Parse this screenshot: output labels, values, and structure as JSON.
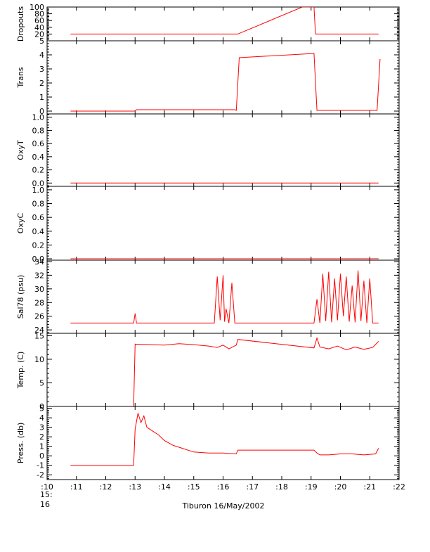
{
  "chart_data": {
    "type": "line",
    "line_color": "#ff0000",
    "axis_color": "#000000",
    "x_axis": {
      "range": [
        10,
        22
      ],
      "ticks": [
        10,
        11,
        12,
        13,
        14,
        15,
        16,
        17,
        18,
        19,
        20,
        21,
        22
      ],
      "tick_labels": [
        ":10",
        ":11",
        ":12",
        ":13",
        ":14",
        ":15",
        ":16",
        ":17",
        ":18",
        ":19",
        ":20",
        ":21",
        ":22"
      ],
      "start_label_line1": "15:",
      "start_label_line2": "16",
      "title": "Tiburon 16/May/2002"
    },
    "panels": [
      {
        "ylabel": "Dropouts",
        "ylim": [
          0,
          100
        ],
        "ticks": [
          20,
          40,
          60,
          80,
          100
        ],
        "tick_labels": [
          "20",
          "40",
          "60",
          "80",
          "100"
        ],
        "series": [
          {
            "x": [
              10.8,
              16.5,
              18.7,
              19.1,
              19.15,
              21.3
            ],
            "y": [
              20,
              20,
              100,
              100,
              20,
              20
            ]
          }
        ]
      },
      {
        "ylabel": "Trans",
        "ylim": [
          -0.2,
          5
        ],
        "ticks": [
          0,
          1,
          2,
          3,
          4,
          5
        ],
        "tick_labels": [
          "0",
          "1",
          "2",
          "3",
          "4",
          "5"
        ],
        "series": [
          {
            "x": [
              10.8,
              13.0,
              13.05,
              16.4,
              16.45,
              16.55,
              19.1,
              19.2,
              21.25,
              21.35
            ],
            "y": [
              0,
              0,
              0.1,
              0.1,
              0.05,
              3.8,
              4.1,
              0.05,
              0.05,
              3.7
            ]
          }
        ]
      },
      {
        "ylabel": "OxyT",
        "ylim": [
          -0.05,
          1.05
        ],
        "ticks": [
          0.0,
          0.2,
          0.4,
          0.6,
          0.8,
          1.0
        ],
        "tick_labels": [
          "0.0",
          "0.2",
          "0.4",
          "0.6",
          "0.8",
          "1.0"
        ],
        "series": [
          {
            "x": [
              10.8,
              21.3
            ],
            "y": [
              0,
              0
            ]
          }
        ]
      },
      {
        "ylabel": "OxyC",
        "ylim": [
          -0.02,
          1.05
        ],
        "ticks": [
          0.0,
          0.2,
          0.4,
          0.6,
          0.8,
          1.0
        ],
        "tick_labels": [
          "0.0",
          "0.2",
          "0.4",
          "0.6",
          "0.8",
          "1.0"
        ],
        "series": [
          {
            "x": [
              10.8,
              21.3
            ],
            "y": [
              0,
              0
            ]
          }
        ]
      },
      {
        "ylabel": "Sal78 (psu)",
        "ylim": [
          23.5,
          34.2
        ],
        "ticks": [
          24,
          26,
          28,
          30,
          32,
          34
        ],
        "tick_labels": [
          "24",
          "26",
          "28",
          "30",
          "32",
          "34"
        ],
        "series": [
          {
            "x": [
              10.8,
              12.95,
              13.0,
              13.05,
              15.7,
              15.8,
              15.9,
              16.0,
              16.05,
              16.1,
              16.2,
              16.3,
              16.4,
              19.1,
              19.2,
              19.3,
              19.4,
              19.5,
              19.6,
              19.7,
              19.8,
              19.9,
              20.0,
              20.1,
              20.2,
              20.3,
              20.4,
              20.5,
              20.6,
              20.7,
              20.8,
              20.9,
              21.0,
              21.1,
              21.2,
              21.3
            ],
            "y": [
              25,
              25,
              26.4,
              25,
              25,
              31.8,
              25.4,
              32.0,
              25.2,
              27.1,
              25.0,
              30.9,
              25.0,
              25.0,
              28.5,
              25.0,
              32.2,
              25.3,
              32.5,
              25.1,
              31.5,
              25.4,
              32.2,
              26.0,
              31.8,
              25.2,
              30.5,
              25.1,
              32.7,
              25.3,
              31.2,
              25.0,
              31.5,
              25.0,
              25.0,
              25.0
            ]
          }
        ]
      },
      {
        "ylabel": "Temp. (C)",
        "ylim": [
          0,
          15.5
        ],
        "ticks": [
          0,
          5,
          10,
          15
        ],
        "tick_labels": [
          "0",
          "5",
          "10",
          "15"
        ],
        "series": [
          {
            "x": [
              10.8,
              12.95,
              13.0,
              13.5,
              14.0,
              14.5,
              15.0,
              15.5,
              15.8,
              16.0,
              16.2,
              16.45,
              16.5,
              19.1,
              19.2,
              19.3,
              19.6,
              19.9,
              20.2,
              20.5,
              20.8,
              21.1,
              21.3
            ],
            "y": [
              0,
              0,
              13.2,
              13.1,
              13.0,
              13.3,
              13.1,
              12.8,
              12.5,
              13.0,
              12.2,
              13.0,
              14.2,
              12.4,
              14.5,
              12.6,
              12.2,
              12.8,
              12.0,
              12.6,
              12.1,
              12.5,
              13.8
            ]
          }
        ]
      },
      {
        "ylabel": "Press. (db)",
        "ylim": [
          -2.5,
          5.2
        ],
        "ticks": [
          -2,
          -1,
          0,
          1,
          2,
          3,
          4,
          5
        ],
        "tick_labels": [
          "-2",
          "-1",
          "0",
          "1",
          "2",
          "3",
          "4",
          "5"
        ],
        "series": [
          {
            "x": [
              10.8,
              12.95,
              13.0,
              13.1,
              13.2,
              13.3,
              13.4,
              13.6,
              13.8,
              14.0,
              14.3,
              14.6,
              15.0,
              15.5,
              16.0,
              16.45,
              16.5,
              19.1,
              19.2,
              19.3,
              19.6,
              20.0,
              20.4,
              20.8,
              21.2,
              21.3
            ],
            "y": [
              -1,
              -1,
              2.8,
              4.5,
              3.5,
              4.2,
              3.0,
              2.6,
              2.2,
              1.6,
              1.1,
              0.8,
              0.4,
              0.3,
              0.3,
              0.2,
              0.6,
              0.6,
              0.3,
              0.1,
              0.1,
              0.2,
              0.2,
              0.1,
              0.2,
              0.8
            ]
          }
        ]
      }
    ]
  }
}
